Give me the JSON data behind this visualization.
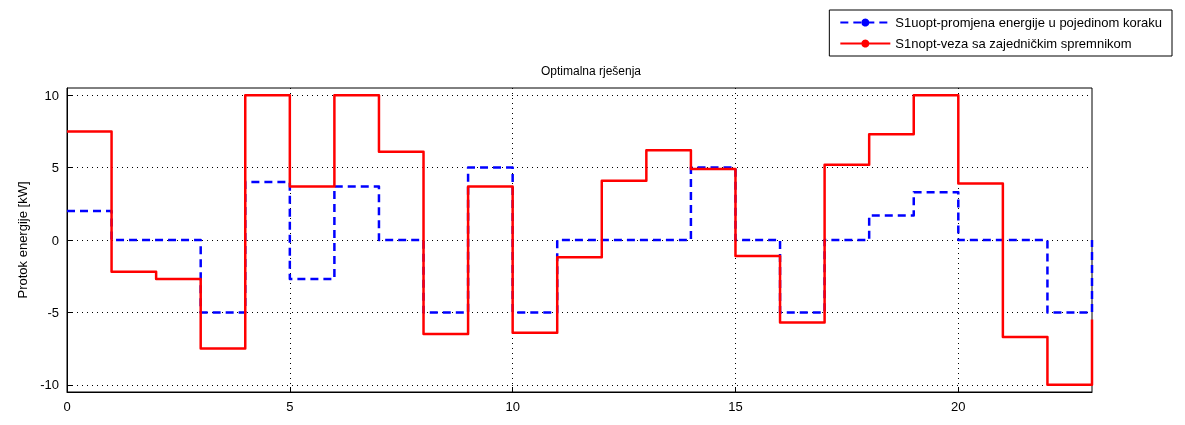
{
  "chart_data": {
    "type": "step",
    "title": "Optimalna rješenja",
    "ylabel": "Protok energije [kW]",
    "x": [
      0,
      1,
      2,
      3,
      4,
      5,
      6,
      7,
      8,
      9,
      10,
      11,
      12,
      13,
      14,
      15,
      16,
      17,
      18,
      19,
      20,
      21,
      22,
      23
    ],
    "series": [
      {
        "name": "S1uopt-promjena energije u pojedinom koraku",
        "color": "#0000ff",
        "line_style": "dashed",
        "values": [
          2,
          0,
          0,
          -5,
          4,
          -2.7,
          3.7,
          0,
          -5,
          5,
          -5,
          0,
          0,
          0,
          5,
          0,
          -5,
          0,
          1.7,
          3.3,
          0,
          0,
          -5,
          0
        ]
      },
      {
        "name": "S1nopt-veza sa zajedničkim spremnikom",
        "color": "#ff0000",
        "line_style": "solid",
        "values": [
          7.5,
          -2.2,
          -2.7,
          -7.5,
          10,
          3.7,
          10,
          6.1,
          -6.5,
          3.7,
          -6.4,
          -1.2,
          4.1,
          6.2,
          4.9,
          -1.1,
          -5.7,
          5.2,
          7.3,
          10,
          3.9,
          -6.7,
          -10,
          -5.5
        ]
      }
    ],
    "xlim": [
      0,
      23
    ],
    "xticks": [
      0,
      5,
      10,
      15,
      20
    ],
    "ylim": [
      -10.5,
      10.5
    ],
    "yticks": [
      -10,
      -5,
      0,
      5,
      10
    ],
    "grid": true,
    "legend": "top right",
    "marker": "none"
  }
}
